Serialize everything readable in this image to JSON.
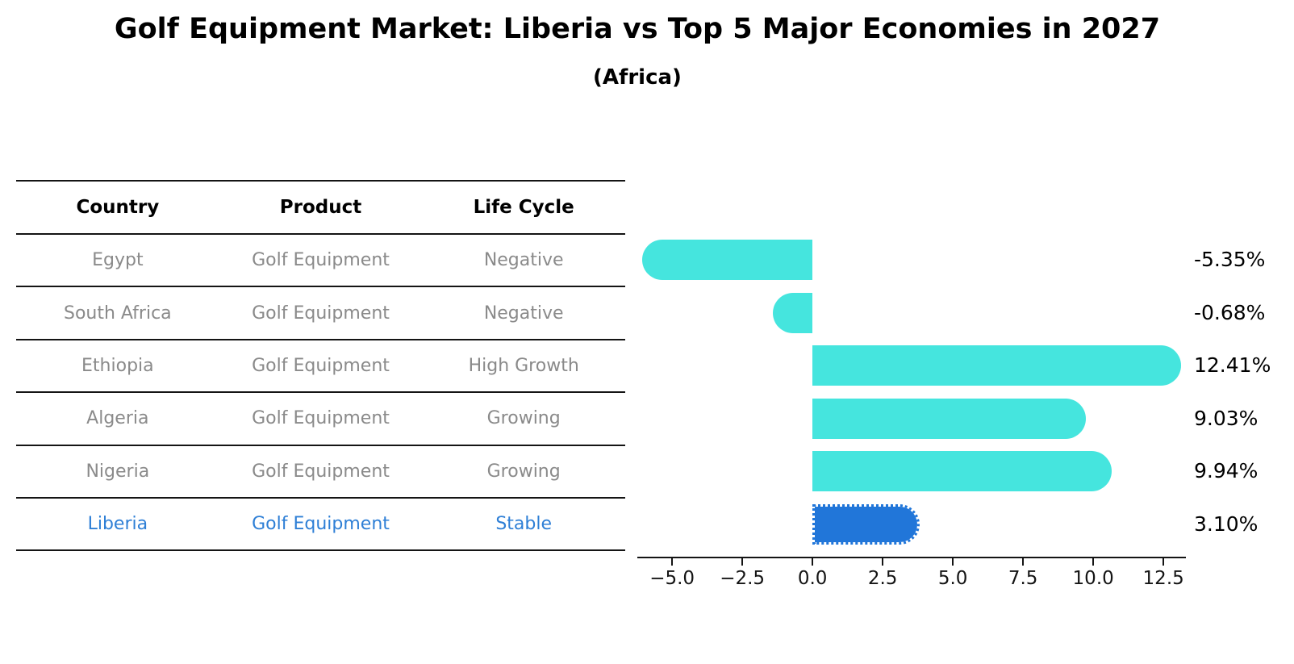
{
  "header": {
    "title": "Golf Equipment Market: Liberia vs Top 5 Major Economies in 2027",
    "subtitle": "(Africa)"
  },
  "table": {
    "columns": [
      "Country",
      "Product",
      "Life Cycle"
    ],
    "rows": [
      {
        "country": "Egypt",
        "product": "Golf Equipment",
        "life_cycle": "Negative",
        "highlight": false
      },
      {
        "country": "South Africa",
        "product": "Golf Equipment",
        "life_cycle": "Negative",
        "highlight": false
      },
      {
        "country": "Ethiopia",
        "product": "Golf Equipment",
        "life_cycle": "High Growth",
        "highlight": false
      },
      {
        "country": "Algeria",
        "product": "Golf Equipment",
        "life_cycle": "Growing",
        "highlight": false
      },
      {
        "country": "Nigeria",
        "product": "Golf Equipment",
        "life_cycle": "Growing",
        "highlight": false
      },
      {
        "country": "Liberia",
        "product": "Golf Equipment",
        "life_cycle": "Stable",
        "highlight": true
      }
    ]
  },
  "chart_data": {
    "type": "bar",
    "orientation": "horizontal",
    "title": "Golf Equipment Market: Liberia vs Top 5 Major Economies in 2027 (Africa)",
    "categories": [
      "Egypt",
      "South Africa",
      "Ethiopia",
      "Algeria",
      "Nigeria",
      "Liberia"
    ],
    "values": [
      -5.35,
      -0.68,
      12.41,
      9.03,
      9.94,
      3.1
    ],
    "value_labels": [
      "-5.35%",
      "-0.68%",
      "12.41%",
      "9.03%",
      "9.94%",
      "3.10%"
    ],
    "unit": "percent",
    "highlight_index": 5,
    "x_ticks": [
      "−5.0",
      "−2.5",
      "0.0",
      "2.5",
      "5.0",
      "7.5",
      "10.0",
      "12.5"
    ],
    "x_tick_values": [
      -5.0,
      -2.5,
      0.0,
      2.5,
      5.0,
      7.5,
      10.0,
      12.5
    ],
    "xlim": [
      -6.24,
      13.3
    ],
    "grid": false,
    "legend": false,
    "colors": {
      "bar_default": "#45e5de",
      "bar_highlight": "#2176d9",
      "highlight_text": "#2e7fd6",
      "table_text": "#8a8a8a",
      "axis_text": "#141414"
    }
  }
}
